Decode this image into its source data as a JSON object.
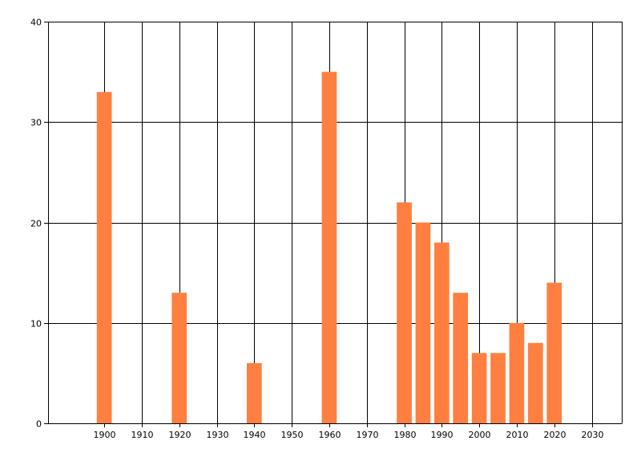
{
  "chart_data": {
    "type": "bar",
    "title": "",
    "xlabel": "",
    "ylabel": "",
    "x": [
      1900,
      1920,
      1940,
      1960,
      1980,
      1985,
      1990,
      1995,
      2000,
      2005,
      2010,
      2015,
      2020
    ],
    "values": [
      33,
      13,
      6,
      35,
      22,
      20,
      18,
      13,
      7,
      7,
      10,
      8,
      14
    ],
    "xlim": [
      1885,
      2038
    ],
    "ylim": [
      0,
      40
    ],
    "x_ticks": [
      1900,
      1910,
      1920,
      1930,
      1940,
      1950,
      1960,
      1970,
      1980,
      1990,
      2000,
      2010,
      2020,
      2030
    ],
    "y_ticks": [
      0,
      10,
      20,
      30,
      40
    ],
    "bar_width_years": 4,
    "grid": true,
    "legend": "none",
    "colors": {
      "bar": "#FF7F40",
      "grid": "#000000",
      "axis": "#000000",
      "background": "#FFFFFF"
    }
  }
}
